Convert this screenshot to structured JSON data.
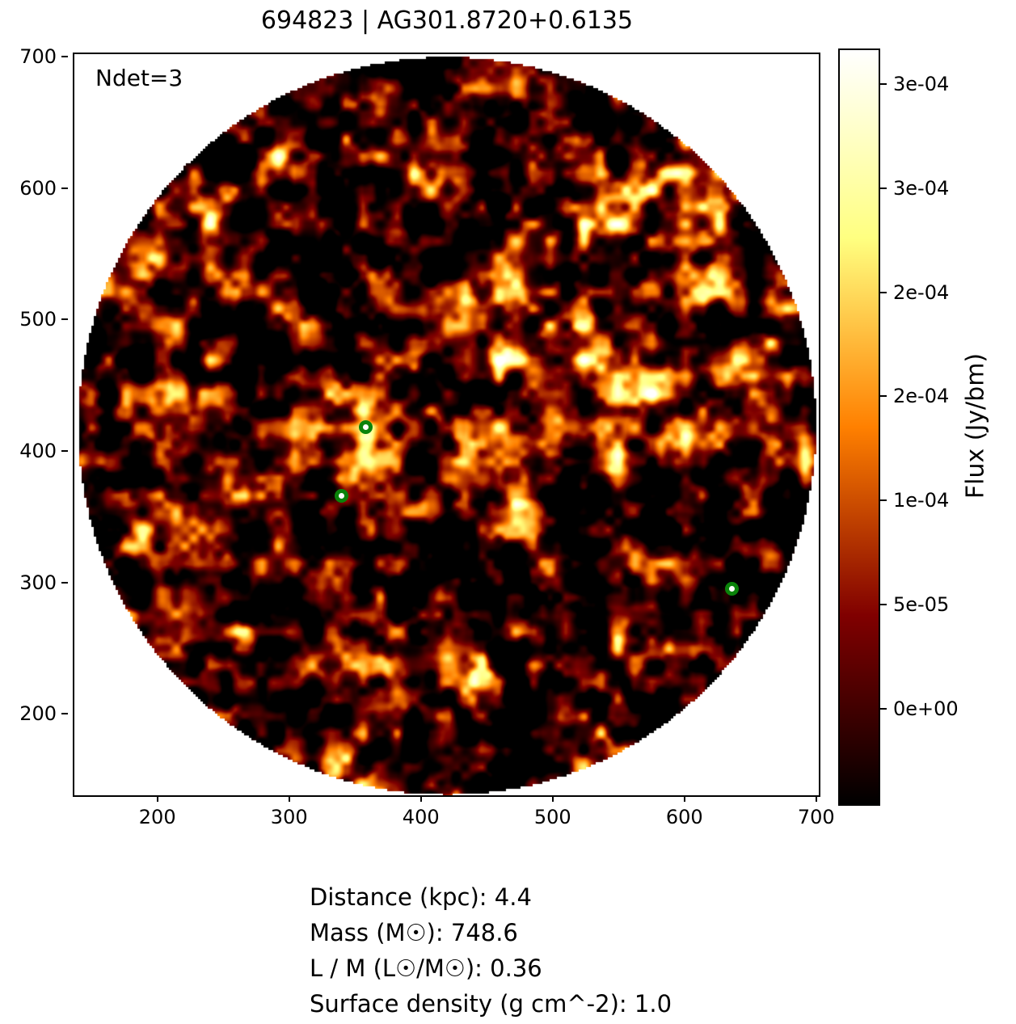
{
  "figure": {
    "title": "694823 | AG301.8720+0.6135",
    "ndet_label": "Ndet=3",
    "info_lines": [
      "Distance (kpc): 4.4",
      "Mass (M☉): 748.6",
      "L / M (L☉/M☉): 0.36",
      "Surface density (g cm^-2): 1.0"
    ]
  },
  "colorbar": {
    "label": "Flux (Jy/bm)",
    "tick_labels": [
      "3e-04",
      "3e-04",
      "2e-04",
      "2e-04",
      "1e-04",
      "5e-05",
      "0e+00"
    ],
    "tick_values": [
      0.0003,
      0.00025,
      0.0002,
      0.00015,
      0.0001,
      5e-05,
      0.0
    ],
    "vmin": -4.5e-05,
    "vmax": 0.000317,
    "colormap": "afmhot",
    "gradient_stops": [
      "#000000 0%",
      "#400000 12.5%",
      "#800000 25%",
      "#bf4000 37.5%",
      "#ff8000 50%",
      "#ffbf40 62.5%",
      "#ffff80 75%",
      "#ffffc0 87.5%",
      "#ffffff 100%"
    ]
  },
  "chart_data": {
    "type": "heatmap",
    "title": "694823 | AG301.8720+0.6135",
    "xlabel": "",
    "ylabel": "",
    "x_ticks": [
      200,
      300,
      400,
      500,
      600,
      700
    ],
    "y_ticks": [
      700,
      600,
      500,
      400,
      300,
      200
    ],
    "x_range": [
      137,
      702
    ],
    "y_range": [
      138,
      702
    ],
    "grid": false,
    "legend": "none",
    "colorbar_label": "Flux (Jy/bm)",
    "colorbar_tick_labels": [
      "3e-04",
      "3e-04",
      "2e-04",
      "2e-04",
      "1e-04",
      "5e-05",
      "0e+00"
    ],
    "colormap": "afmhot",
    "aperture": {
      "center_x": 420,
      "center_y": 419,
      "radius_units": 280,
      "background": "#ffffff"
    },
    "n_detections": 3,
    "marker_color": "#0a830a",
    "detections": [
      {
        "x": 358,
        "y": 418
      },
      {
        "x": 340,
        "y": 366
      },
      {
        "x": 636,
        "y": 295
      }
    ],
    "annotations": {
      "ndet": "Ndet=3",
      "distance_kpc": 4.4,
      "mass_msun": 748.6,
      "l_over_m": 0.36,
      "surface_density_g_cm2": 1.0
    }
  }
}
